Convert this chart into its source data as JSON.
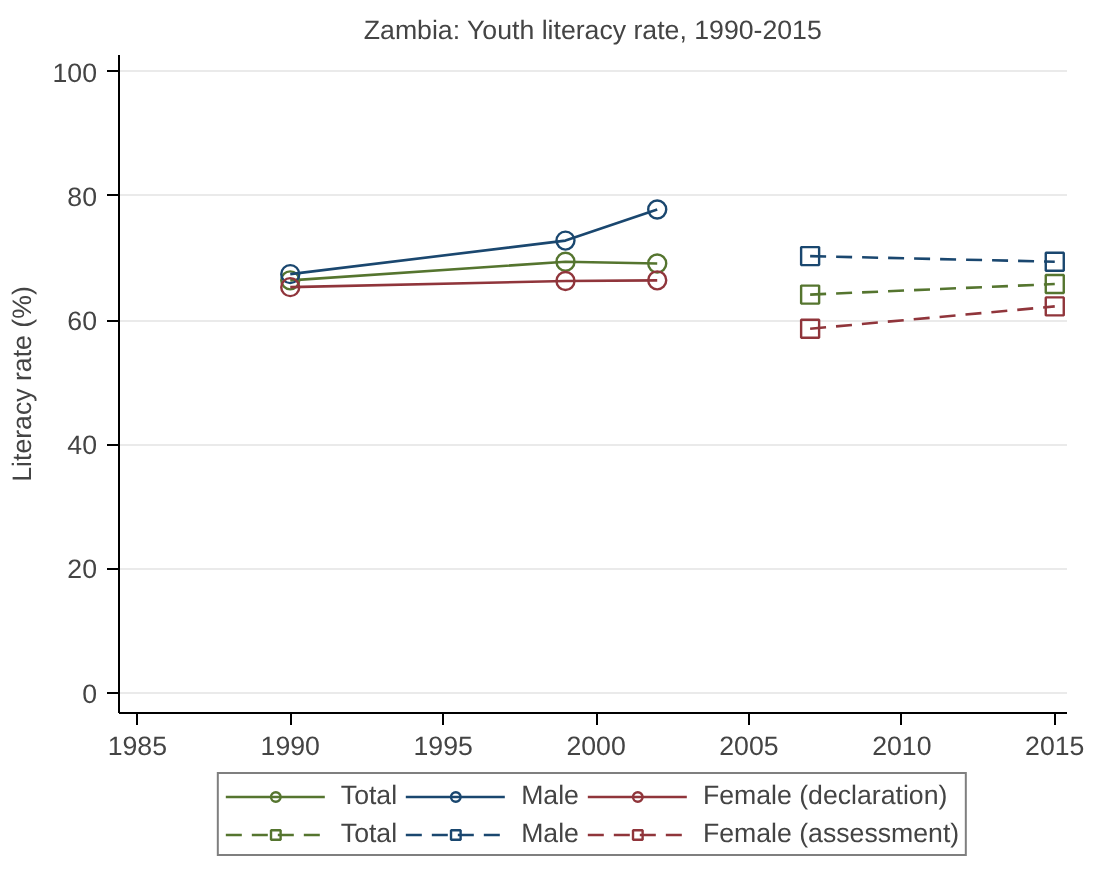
{
  "chart_data": {
    "type": "line",
    "title": "Zambia: Youth literacy rate, 1990-2015",
    "ylabel": "Literacy rate (%)",
    "xlim": [
      1984.4,
      2015.4
    ],
    "xticks": [
      1985,
      1990,
      1995,
      2000,
      2005,
      2010,
      2015
    ],
    "ylim": [
      -3.3,
      102.7
    ],
    "yticks": [
      0,
      20,
      40,
      60,
      80,
      100
    ],
    "grid": "y",
    "legend": "bottom",
    "series": [
      {
        "name": "Total",
        "color": "#55752f",
        "x": [
          1990,
          1999,
          2002
        ],
        "values": [
          66.4,
          69.4,
          69.1
        ],
        "marker": "circle",
        "line_style": "solid"
      },
      {
        "name": "Male",
        "color": "#1a476f",
        "x": [
          1990,
          1999,
          2002
        ],
        "values": [
          67.4,
          72.8,
          77.8
        ],
        "marker": "circle",
        "line_style": "solid"
      },
      {
        "name": "Female (declaration)",
        "color": "#90353b",
        "x": [
          1990,
          1999,
          2002
        ],
        "values": [
          65.3,
          66.3,
          66.4
        ],
        "marker": "circle",
        "line_style": "solid"
      },
      {
        "name": "Total",
        "color": "#55752f",
        "x": [
          2007,
          2015
        ],
        "values": [
          64.1,
          65.8
        ],
        "marker": "square",
        "line_style": "dashed"
      },
      {
        "name": "Male",
        "color": "#1a476f",
        "x": [
          2007,
          2015
        ],
        "values": [
          70.3,
          69.4
        ],
        "marker": "square",
        "line_style": "dashed"
      },
      {
        "name": "Female (assessment)",
        "color": "#90353b",
        "x": [
          2007,
          2015
        ],
        "values": [
          58.6,
          62.2
        ],
        "marker": "square",
        "line_style": "dashed"
      }
    ]
  }
}
